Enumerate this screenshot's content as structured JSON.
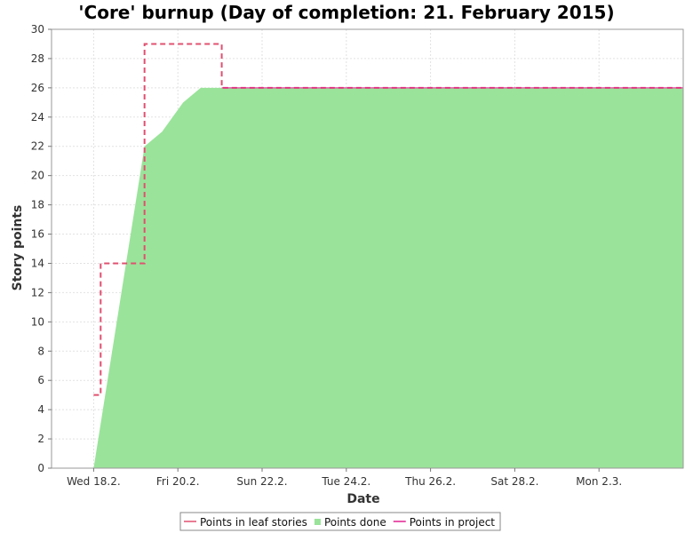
{
  "chart_data": {
    "type": "area",
    "title": "'Core' burnup (Day of completion: 21. February 2015)",
    "xlabel": "Date",
    "ylabel": "Story points",
    "ylim": [
      0,
      30
    ],
    "yticks": [
      0,
      2,
      4,
      6,
      8,
      10,
      12,
      14,
      16,
      18,
      20,
      22,
      24,
      26,
      28,
      30
    ],
    "xlim": [
      "2015-02-17",
      "2015-03-04"
    ],
    "xticks": [
      {
        "date": "2015-02-18",
        "label": "Wed 18.2."
      },
      {
        "date": "2015-02-20",
        "label": "Fri 20.2."
      },
      {
        "date": "2015-02-22",
        "label": "Sun 22.2."
      },
      {
        "date": "2015-02-24",
        "label": "Tue 24.2."
      },
      {
        "date": "2015-02-26",
        "label": "Thu 26.2."
      },
      {
        "date": "2015-02-28",
        "label": "Sat 28.2."
      },
      {
        "date": "2015-03-02",
        "label": "Mon 2.3."
      }
    ],
    "grid": true,
    "legend_position": "bottom",
    "series": [
      {
        "name": "Points in leaf stories",
        "color": "#e05070",
        "style": "dashed-step",
        "points": [
          [
            "2015-02-18 00:00",
            5
          ],
          [
            "2015-02-18 04:00",
            5
          ],
          [
            "2015-02-18 04:00",
            14
          ],
          [
            "2015-02-19 05:00",
            14
          ],
          [
            "2015-02-19 05:00",
            29
          ],
          [
            "2015-02-21 01:00",
            29
          ],
          [
            "2015-02-21 01:00",
            26
          ],
          [
            "2015-03-04 00:00",
            26
          ]
        ]
      },
      {
        "name": "Points done",
        "color": "#9ae39a",
        "style": "area",
        "points": [
          [
            "2015-02-18 00:00",
            0
          ],
          [
            "2015-02-19 05:00",
            22
          ],
          [
            "2015-02-19 15:00",
            23
          ],
          [
            "2015-02-20 03:00",
            25
          ],
          [
            "2015-02-20 13:00",
            26
          ],
          [
            "2015-03-04 00:00",
            26
          ]
        ]
      },
      {
        "name": "Points in project",
        "color": "#e02090",
        "style": "line",
        "points": [
          [
            "2015-02-21 01:00",
            26
          ],
          [
            "2015-03-04 00:00",
            26
          ]
        ]
      }
    ]
  }
}
